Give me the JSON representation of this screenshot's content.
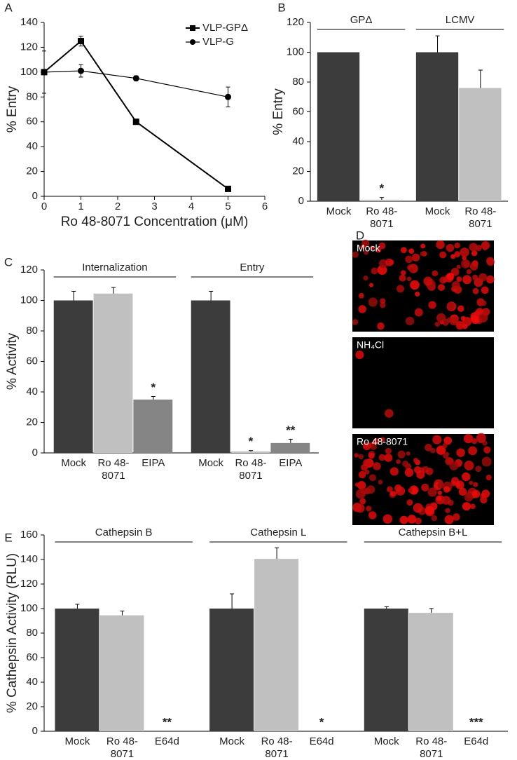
{
  "chart_data": [
    {
      "panel": "A",
      "type": "line",
      "y_label": "% Entry",
      "x_label": "Ro 48-8071 Concentration (μM)",
      "xlim": [
        0,
        6
      ],
      "xticks": [
        0,
        1,
        2,
        3,
        4,
        5,
        6
      ],
      "ylim": [
        0,
        140
      ],
      "yticks": [
        0,
        20,
        40,
        60,
        80,
        100,
        120,
        140
      ],
      "legend": "upper right",
      "series": [
        {
          "name": "VLP-GPΔ",
          "color": "#000000",
          "marker": "square",
          "x": [
            0,
            1,
            2.5,
            5
          ],
          "values": [
            100,
            125,
            60,
            6
          ],
          "errors": [
            17,
            4,
            1,
            1
          ]
        },
        {
          "name": "VLP-G",
          "color": "#000000",
          "marker": "circle",
          "x": [
            0,
            1,
            2.5,
            5
          ],
          "values": [
            100,
            101,
            95,
            80
          ],
          "errors": [
            0,
            5,
            2,
            8
          ]
        }
      ]
    },
    {
      "panel": "B",
      "type": "grouped_bar",
      "y_label": "% Entry",
      "ylim": [
        0,
        120
      ],
      "yticks": [
        0,
        20,
        40,
        60,
        80,
        100,
        120
      ],
      "colors": [
        "#3c3c3c",
        "#c0c0c0"
      ],
      "groups": [
        {
          "label": "GPΔ",
          "categories": [
            "Mock",
            "Ro 48-8071"
          ],
          "values": [
            100,
            1
          ],
          "errors": [
            0,
            1.5
          ],
          "annotations": [
            {
              "index": 1,
              "text": "*"
            }
          ]
        },
        {
          "label": "LCMV",
          "categories": [
            "Mock",
            "Ro 48-8071"
          ],
          "values": [
            100,
            76
          ],
          "errors": [
            11,
            12
          ]
        }
      ]
    },
    {
      "panel": "C",
      "type": "grouped_bar",
      "y_label": "% Activity",
      "ylim": [
        0,
        120
      ],
      "yticks": [
        0,
        20,
        40,
        60,
        80,
        100,
        120
      ],
      "colors": [
        "#3c3c3c",
        "#c0c0c0",
        "#858585"
      ],
      "groups": [
        {
          "label": "Internalization",
          "categories": [
            "Mock",
            "Ro 48-8071",
            "EIPA"
          ],
          "values": [
            100,
            104.5,
            35
          ],
          "errors": [
            6,
            4,
            2
          ],
          "annotations": [
            {
              "index": 2,
              "text": "*"
            }
          ]
        },
        {
          "label": "Entry",
          "categories": [
            "Mock",
            "Ro 48-8071",
            "EIPA"
          ],
          "values": [
            100,
            1,
            6.5
          ],
          "errors": [
            6,
            0.5,
            2.5
          ],
          "annotations": [
            {
              "index": 1,
              "text": "*"
            },
            {
              "index": 2,
              "text": "**"
            }
          ]
        }
      ]
    },
    {
      "panel": "D",
      "type": "micrograph",
      "labels": [
        "Mock",
        "NH₄Cl",
        "Ro 48-8071"
      ]
    },
    {
      "panel": "E",
      "type": "grouped_bar",
      "y_label": "% Cathepsin Activity (RLU)",
      "ylim": [
        0,
        160
      ],
      "yticks": [
        0,
        20,
        40,
        60,
        80,
        100,
        120,
        140,
        160
      ],
      "colors": [
        "#3c3c3c",
        "#c0c0c0",
        "#858585"
      ],
      "groups": [
        {
          "label": "Cathepsin B",
          "categories": [
            "Mock",
            "Ro 48-8071",
            "E64d"
          ],
          "values": [
            100,
            94.5,
            0
          ],
          "errors": [
            3.5,
            3.5,
            0
          ],
          "annotations": [
            {
              "index": 2,
              "text": "**"
            }
          ]
        },
        {
          "label": "Cathepsin L",
          "categories": [
            "Mock",
            "Ro 48-8071",
            "E64d"
          ],
          "values": [
            100,
            140.5,
            0
          ],
          "errors": [
            12,
            9,
            0
          ],
          "annotations": [
            {
              "index": 2,
              "text": "*"
            }
          ]
        },
        {
          "label": "Cathepsin B+L",
          "categories": [
            "Mock",
            "Ro 48-8071",
            "E64d"
          ],
          "values": [
            100,
            96.5,
            0
          ],
          "errors": [
            1.5,
            3.5,
            0
          ],
          "annotations": [
            {
              "index": 2,
              "text": "***"
            }
          ]
        }
      ]
    }
  ]
}
